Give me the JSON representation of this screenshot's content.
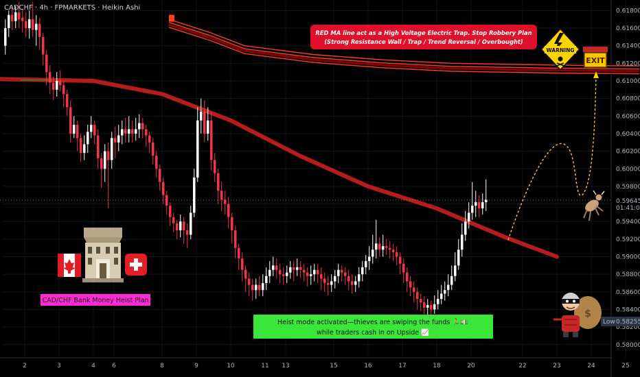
{
  "header": {
    "title": "CADCHF · 4h · FPMARKETS · Heikin Ashi"
  },
  "annotations": {
    "warning_line1": "RED MA line act as a High Voltage Electric Trap. Stop Robbery Plan",
    "warning_line2": "(Strong Resistance Wall / Trap / Trend Reversal / Overbought)",
    "warning_sign": "WARNING",
    "exit_sign": "EXIT",
    "plan_label": "CAD/CHF Bank Money Heist Plan",
    "heist_line1": "Heist mode activated—thieves are swiping the funds 🏃💵",
    "heist_line2": "while traders cash in on Upside 📈"
  },
  "price_axis": {
    "current_price": "0.59645",
    "countdown": "01:41:09",
    "low_label": "Low",
    "low_price": "0.58255"
  },
  "colors": {
    "background": "#000000",
    "bull": "#ffffff",
    "bear": "#f23645",
    "ma": "#b71c1c",
    "band": "#ff3d1f",
    "warning_bg": "#e0102a",
    "heist_bg": "#39e639",
    "plan_bg": "#ff2ad4"
  },
  "icons": [
    "canada-flag-icon",
    "bank-building-icon",
    "swiss-flag-icon",
    "warning-sign-icon",
    "exit-sign-icon",
    "bull-icon",
    "thief-icon"
  ],
  "chart_data": {
    "type": "candlestick",
    "style": "heikin-ashi",
    "symbol": "CADCHF",
    "timeframe": "4h",
    "ylim": [
      0.5785,
      0.6192
    ],
    "y_ticks": [
      "0.61800",
      "0.61600",
      "0.61400",
      "0.61200",
      "0.61000",
      "0.60800",
      "0.60600",
      "0.60400",
      "0.60200",
      "0.60000",
      "0.59800",
      "0.59600",
      "0.59400",
      "0.59200",
      "0.59000",
      "0.58800",
      "0.58600",
      "0.58400",
      "0.58200",
      "0.58000"
    ],
    "x_ticks": [
      "2",
      "3",
      "4",
      "6",
      "8",
      "9",
      "10",
      "11",
      "13",
      "15",
      "16",
      "17",
      "18",
      "20",
      "22",
      "23",
      "24",
      "25"
    ],
    "x_tick_pos": [
      0,
      10,
      20,
      26,
      40,
      50,
      60,
      70,
      76,
      90,
      100,
      110,
      120,
      130,
      145,
      155,
      165,
      175
    ],
    "candles": [
      [
        0.614,
        0.616,
        0.617,
        0.613
      ],
      [
        0.616,
        0.6175,
        0.618,
        0.615
      ],
      [
        0.6175,
        0.6168,
        0.6185,
        0.6158
      ],
      [
        0.6168,
        0.6178,
        0.6185,
        0.616
      ],
      [
        0.6178,
        0.617,
        0.619,
        0.616
      ],
      [
        0.6172,
        0.6168,
        0.6182,
        0.6155
      ],
      [
        0.6168,
        0.616,
        0.6178,
        0.615
      ],
      [
        0.616,
        0.617,
        0.618,
        0.6148
      ],
      [
        0.617,
        0.6158,
        0.619,
        0.615
      ],
      [
        0.6158,
        0.6165,
        0.6175,
        0.614
      ],
      [
        0.6165,
        0.615,
        0.6172,
        0.6135
      ],
      [
        0.615,
        0.613,
        0.6155,
        0.6118
      ],
      [
        0.613,
        0.611,
        0.6135,
        0.6095
      ],
      [
        0.611,
        0.6098,
        0.6118,
        0.6085
      ],
      [
        0.6098,
        0.609,
        0.6105,
        0.6078
      ],
      [
        0.609,
        0.61,
        0.611,
        0.6082
      ],
      [
        0.61,
        0.6095,
        0.6112,
        0.6088
      ],
      [
        0.6095,
        0.6085,
        0.61,
        0.607
      ],
      [
        0.6085,
        0.607,
        0.609,
        0.606
      ],
      [
        0.607,
        0.604,
        0.6078,
        0.603
      ],
      [
        0.604,
        0.605,
        0.606,
        0.6035
      ],
      [
        0.605,
        0.6035,
        0.6055,
        0.602
      ],
      [
        0.6035,
        0.6018,
        0.604,
        0.6008
      ],
      [
        0.6018,
        0.6028,
        0.6038,
        0.601
      ],
      [
        0.6028,
        0.6042,
        0.605,
        0.6018
      ],
      [
        0.6042,
        0.605,
        0.606,
        0.6035
      ],
      [
        0.605,
        0.6038,
        0.6055,
        0.6028
      ],
      [
        0.6038,
        0.6012,
        0.6045,
        0.6
      ],
      [
        0.6012,
        0.6,
        0.6018,
        0.5978
      ],
      [
        0.6,
        0.602,
        0.6028,
        0.5985
      ],
      [
        0.602,
        0.601,
        0.603,
        0.5955
      ],
      [
        0.601,
        0.6035,
        0.6042,
        0.6
      ],
      [
        0.6035,
        0.603,
        0.6048,
        0.6012
      ],
      [
        0.603,
        0.6038,
        0.605,
        0.602
      ],
      [
        0.6038,
        0.6045,
        0.6055,
        0.6028
      ],
      [
        0.6045,
        0.604,
        0.6058,
        0.603
      ],
      [
        0.604,
        0.6045,
        0.606,
        0.603
      ],
      [
        0.6045,
        0.604,
        0.6055,
        0.603
      ],
      [
        0.604,
        0.6045,
        0.6058,
        0.6032
      ],
      [
        0.6045,
        0.6052,
        0.6062,
        0.6035
      ],
      [
        0.6052,
        0.6045,
        0.6058,
        0.6035
      ],
      [
        0.6045,
        0.6038,
        0.605,
        0.6025
      ],
      [
        0.6038,
        0.603,
        0.6042,
        0.6018
      ],
      [
        0.603,
        0.6015,
        0.6035,
        0.6005
      ],
      [
        0.6015,
        0.6,
        0.602,
        0.599
      ],
      [
        0.6,
        0.5985,
        0.6005,
        0.5975
      ],
      [
        0.5985,
        0.597,
        0.599,
        0.596
      ],
      [
        0.597,
        0.5958,
        0.5975,
        0.5948
      ],
      [
        0.5958,
        0.5945,
        0.5962,
        0.5935
      ],
      [
        0.5945,
        0.5938,
        0.595,
        0.5928
      ],
      [
        0.5938,
        0.593,
        0.5942,
        0.592
      ],
      [
        0.593,
        0.594,
        0.5948,
        0.5922
      ],
      [
        0.594,
        0.593,
        0.5945,
        0.5915
      ],
      [
        0.593,
        0.5925,
        0.5938,
        0.591
      ],
      [
        0.5925,
        0.595,
        0.5958,
        0.592
      ],
      [
        0.595,
        0.599,
        0.6,
        0.5945
      ],
      [
        0.599,
        0.6055,
        0.607,
        0.5985
      ],
      [
        0.6055,
        0.6065,
        0.608,
        0.604
      ],
      [
        0.6065,
        0.604,
        0.6078,
        0.603
      ],
      [
        0.604,
        0.6055,
        0.607,
        0.6032
      ],
      [
        0.6055,
        0.601,
        0.6065,
        0.5998
      ],
      [
        0.601,
        0.5995,
        0.6018,
        0.5985
      ],
      [
        0.5995,
        0.5975,
        0.6,
        0.596
      ],
      [
        0.5975,
        0.5965,
        0.5985,
        0.5952
      ],
      [
        0.5965,
        0.596,
        0.5975,
        0.5948
      ],
      [
        0.596,
        0.5945,
        0.5968,
        0.5932
      ],
      [
        0.5945,
        0.593,
        0.595,
        0.5915
      ],
      [
        0.593,
        0.591,
        0.5935,
        0.5898
      ],
      [
        0.591,
        0.5898,
        0.5915,
        0.5885
      ],
      [
        0.5898,
        0.5885,
        0.5905,
        0.5872
      ],
      [
        0.5885,
        0.5875,
        0.589,
        0.586
      ],
      [
        0.5875,
        0.5868,
        0.5882,
        0.5855
      ],
      [
        0.5868,
        0.5862,
        0.5875,
        0.585
      ],
      [
        0.5862,
        0.5868,
        0.5875,
        0.5852
      ],
      [
        0.5868,
        0.5862,
        0.5878,
        0.5855
      ],
      [
        0.5862,
        0.587,
        0.588,
        0.5855
      ],
      [
        0.587,
        0.5878,
        0.5888,
        0.5862
      ],
      [
        0.5878,
        0.5885,
        0.5895,
        0.587
      ],
      [
        0.5885,
        0.589,
        0.59,
        0.5878
      ],
      [
        0.589,
        0.5885,
        0.5898,
        0.5875
      ],
      [
        0.5885,
        0.588,
        0.5892,
        0.587
      ],
      [
        0.588,
        0.5878,
        0.5888,
        0.5868
      ],
      [
        0.5878,
        0.5882,
        0.589,
        0.587
      ],
      [
        0.5882,
        0.5888,
        0.5895,
        0.5875
      ],
      [
        0.5888,
        0.5885,
        0.5895,
        0.5872
      ],
      [
        0.5885,
        0.5888,
        0.5898,
        0.5878
      ],
      [
        0.5888,
        0.5885,
        0.5895,
        0.5876
      ],
      [
        0.5885,
        0.5882,
        0.5892,
        0.5872
      ],
      [
        0.5882,
        0.5878,
        0.5888,
        0.5866
      ],
      [
        0.5878,
        0.588,
        0.589,
        0.5868
      ],
      [
        0.588,
        0.5885,
        0.5892,
        0.5872
      ],
      [
        0.5885,
        0.588,
        0.5892,
        0.587
      ],
      [
        0.588,
        0.5875,
        0.5888,
        0.5862
      ],
      [
        0.5875,
        0.587,
        0.5882,
        0.586
      ],
      [
        0.587,
        0.5868,
        0.5878,
        0.5856
      ],
      [
        0.5868,
        0.5872,
        0.588,
        0.586
      ],
      [
        0.5872,
        0.5878,
        0.5885,
        0.5864
      ],
      [
        0.5878,
        0.5885,
        0.5892,
        0.587
      ],
      [
        0.5885,
        0.5882,
        0.589,
        0.5872
      ],
      [
        0.5882,
        0.5878,
        0.5888,
        0.5868
      ],
      [
        0.5878,
        0.5872,
        0.5885,
        0.5862
      ],
      [
        0.5872,
        0.5868,
        0.588,
        0.5858
      ],
      [
        0.5868,
        0.5872,
        0.5878,
        0.586
      ],
      [
        0.5872,
        0.588,
        0.5888,
        0.5865
      ],
      [
        0.588,
        0.5888,
        0.5895,
        0.5872
      ],
      [
        0.5888,
        0.5895,
        0.5902,
        0.588
      ],
      [
        0.5895,
        0.59,
        0.5912,
        0.5885
      ],
      [
        0.59,
        0.5908,
        0.5925,
        0.5892
      ],
      [
        0.5908,
        0.5915,
        0.5942,
        0.5898
      ],
      [
        0.5915,
        0.5908,
        0.5922,
        0.59
      ],
      [
        0.5908,
        0.5912,
        0.5925,
        0.59
      ],
      [
        0.5912,
        0.591,
        0.592,
        0.5902
      ],
      [
        0.591,
        0.5908,
        0.5918,
        0.5898
      ],
      [
        0.5908,
        0.5905,
        0.5915,
        0.5895
      ],
      [
        0.5905,
        0.59,
        0.5912,
        0.589
      ],
      [
        0.59,
        0.5892,
        0.5905,
        0.588
      ],
      [
        0.5892,
        0.5882,
        0.5898,
        0.587
      ],
      [
        0.5882,
        0.5872,
        0.5888,
        0.586
      ],
      [
        0.5872,
        0.5865,
        0.5878,
        0.5855
      ],
      [
        0.5865,
        0.586,
        0.5872,
        0.5848
      ],
      [
        0.586,
        0.5852,
        0.5865,
        0.584
      ],
      [
        0.5852,
        0.5848,
        0.5858,
        0.5838
      ],
      [
        0.5848,
        0.5842,
        0.5855,
        0.5832
      ],
      [
        0.5842,
        0.5845,
        0.5852,
        0.5834
      ],
      [
        0.5845,
        0.584,
        0.585,
        0.583
      ],
      [
        0.584,
        0.5846,
        0.5856,
        0.5835
      ],
      [
        0.5846,
        0.5852,
        0.5862,
        0.584
      ],
      [
        0.5852,
        0.5858,
        0.5868,
        0.5846
      ],
      [
        0.5858,
        0.5862,
        0.5872,
        0.585
      ],
      [
        0.5862,
        0.5868,
        0.588,
        0.5855
      ],
      [
        0.5868,
        0.5878,
        0.589,
        0.5862
      ],
      [
        0.5878,
        0.589,
        0.5905,
        0.5872
      ],
      [
        0.589,
        0.5908,
        0.592,
        0.5885
      ],
      [
        0.5908,
        0.5925,
        0.5938,
        0.59
      ],
      [
        0.5925,
        0.594,
        0.5952,
        0.5918
      ],
      [
        0.594,
        0.595,
        0.5962,
        0.5932
      ],
      [
        0.595,
        0.5958,
        0.5985,
        0.5942
      ],
      [
        0.5958,
        0.5962,
        0.5975,
        0.5945
      ],
      [
        0.5962,
        0.5955,
        0.597,
        0.5945
      ],
      [
        0.5955,
        0.5962,
        0.5972,
        0.5948
      ],
      [
        0.5962,
        0.5965,
        0.5988,
        0.5952
      ]
    ],
    "ma": [
      [
        0,
        0.6102
      ],
      [
        20,
        0.61
      ],
      [
        40,
        0.6085
      ],
      [
        60,
        0.6055
      ],
      [
        80,
        0.6015
      ],
      [
        100,
        0.598
      ],
      [
        120,
        0.5955
      ],
      [
        140,
        0.5922
      ],
      [
        155,
        0.59
      ]
    ],
    "resistance_band": [
      [
        18,
        0.617
      ],
      [
        30,
        0.6155
      ],
      [
        40,
        0.614
      ],
      [
        60,
        0.613
      ],
      [
        80,
        0.6124
      ],
      [
        100,
        0.612
      ],
      [
        130,
        0.6118
      ],
      [
        155,
        0.6117
      ]
    ]
  }
}
